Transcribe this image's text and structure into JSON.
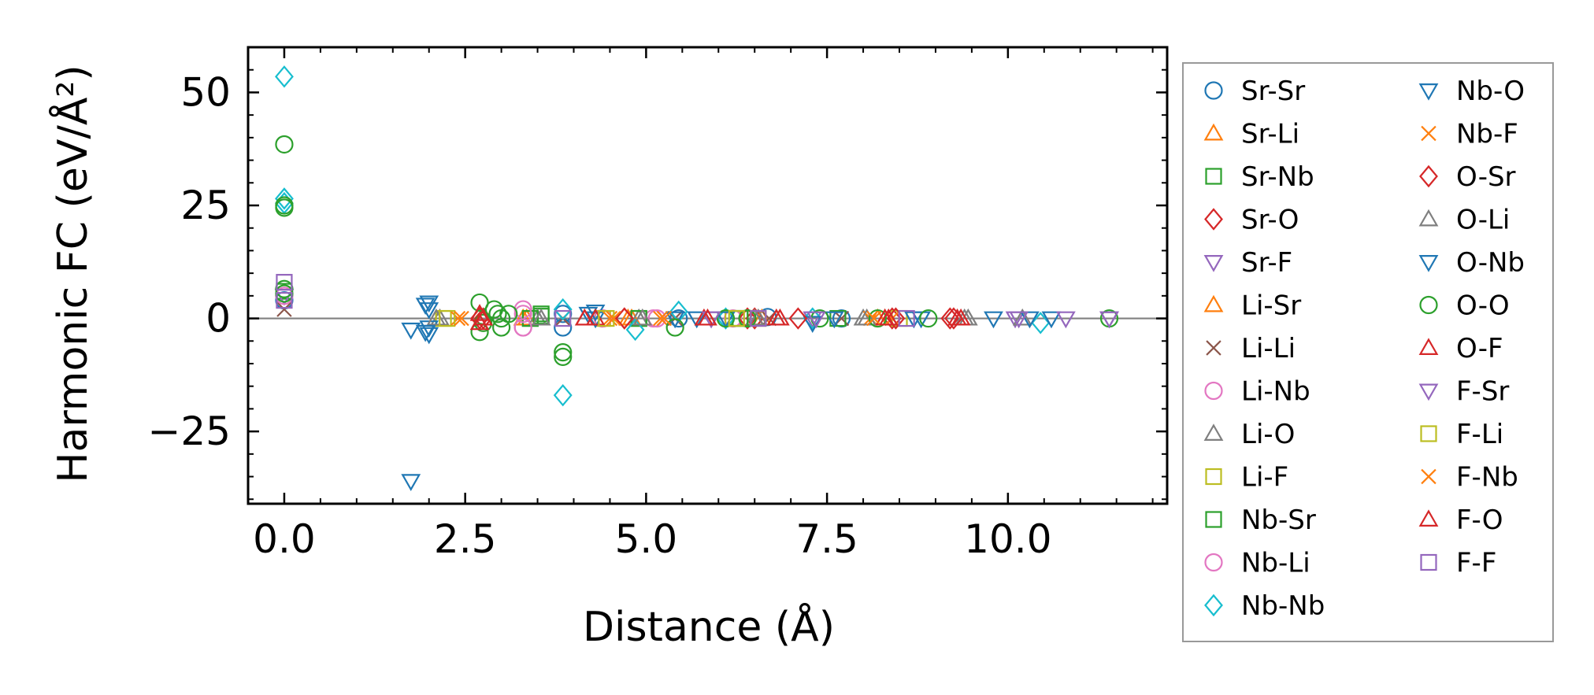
{
  "chart_data": {
    "type": "scatter",
    "title": "",
    "xlabel": "Distance (Å)",
    "ylabel": "Harmonic FC (eV/Å²)",
    "xlim": [
      -0.5,
      12.2
    ],
    "ylim": [
      -41,
      60
    ],
    "xticks": [
      0.0,
      2.5,
      5.0,
      7.5,
      10.0
    ],
    "xtick_labels": [
      "0.0",
      "2.5",
      "5.0",
      "7.5",
      "10.0"
    ],
    "yticks": [
      -25,
      0,
      25,
      50
    ],
    "ytick_labels": [
      "−25",
      "0",
      "25",
      "50"
    ],
    "x_minor_step": 0.5,
    "y_minor_step": 5,
    "grid": false,
    "reference_line_y": 0,
    "legend_position": "outside-right",
    "series": [
      {
        "name": "Sr-Sr",
        "marker": "circle",
        "color": "#1f77b4",
        "points": [
          [
            0,
            4
          ],
          [
            3.85,
            -2
          ],
          [
            3.85,
            1
          ],
          [
            5.45,
            0
          ],
          [
            6.68,
            0.3
          ],
          [
            7.7,
            0
          ]
        ]
      },
      {
        "name": "Sr-Li",
        "marker": "triangle-up",
        "color": "#ff7f0e",
        "points": [
          [
            3.35,
            0
          ],
          [
            4.75,
            0
          ],
          [
            6.5,
            0
          ],
          [
            8.3,
            0
          ]
        ]
      },
      {
        "name": "Sr-Nb",
        "marker": "square",
        "color": "#2ca02c",
        "points": [
          [
            0,
            6
          ],
          [
            3.4,
            0
          ],
          [
            3.55,
            0.5
          ],
          [
            4.9,
            0
          ],
          [
            6.3,
            0
          ]
        ]
      },
      {
        "name": "Sr-O",
        "marker": "diamond",
        "color": "#d62728",
        "points": [
          [
            2.7,
            0
          ],
          [
            4.7,
            0
          ],
          [
            6.5,
            0
          ],
          [
            8.4,
            0
          ],
          [
            9.2,
            0
          ]
        ]
      },
      {
        "name": "Sr-F",
        "marker": "triangle-down",
        "color": "#9467bd",
        "points": [
          [
            0,
            5
          ],
          [
            5.9,
            0
          ],
          [
            7.3,
            0
          ],
          [
            10.1,
            0
          ],
          [
            11.4,
            0
          ]
        ]
      },
      {
        "name": "Li-Sr",
        "marker": "triangle-up",
        "color": "#ff7f0e",
        "points": [
          [
            3.3,
            0
          ],
          [
            4.8,
            0
          ],
          [
            6.6,
            0
          ],
          [
            8.2,
            0
          ]
        ]
      },
      {
        "name": "Li-Li",
        "marker": "x",
        "color": "#8c564b",
        "points": [
          [
            0,
            2
          ],
          [
            3.85,
            0
          ],
          [
            5.4,
            0
          ],
          [
            6.7,
            0
          ],
          [
            7.7,
            0
          ]
        ]
      },
      {
        "name": "Li-Nb",
        "marker": "circle",
        "color": "#e377c2",
        "points": [
          [
            0,
            5
          ],
          [
            3.3,
            2
          ],
          [
            3.3,
            -2
          ],
          [
            4.4,
            0
          ],
          [
            5.1,
            0
          ],
          [
            6.2,
            0
          ]
        ]
      },
      {
        "name": "Li-O",
        "marker": "triangle-up",
        "color": "#7f7f7f",
        "points": [
          [
            2.15,
            0
          ],
          [
            3.5,
            0
          ],
          [
            4.9,
            0
          ],
          [
            6.5,
            0
          ],
          [
            8.0,
            0
          ],
          [
            9.4,
            0
          ]
        ]
      },
      {
        "name": "Li-F",
        "marker": "square",
        "color": "#bcbd22",
        "points": [
          [
            2.2,
            0
          ],
          [
            4.4,
            0
          ],
          [
            6.2,
            0
          ],
          [
            8.5,
            0
          ]
        ]
      },
      {
        "name": "Nb-Sr",
        "marker": "square",
        "color": "#2ca02c",
        "points": [
          [
            3.4,
            0
          ],
          [
            3.55,
            1
          ],
          [
            4.9,
            0
          ],
          [
            6.3,
            0
          ],
          [
            7.65,
            0
          ]
        ]
      },
      {
        "name": "Nb-Li",
        "marker": "circle",
        "color": "#e377c2",
        "points": [
          [
            3.3,
            1
          ],
          [
            3.3,
            -2
          ],
          [
            4.4,
            0
          ],
          [
            5.15,
            0
          ]
        ]
      },
      {
        "name": "Nb-Nb",
        "marker": "diamond",
        "color": "#17becf",
        "points": [
          [
            0,
            53.5
          ],
          [
            0,
            26.5
          ],
          [
            0,
            25.5
          ],
          [
            3.85,
            -17
          ],
          [
            3.85,
            2
          ],
          [
            4.85,
            -2.5
          ],
          [
            5.45,
            1.5
          ],
          [
            6.1,
            0
          ],
          [
            7.3,
            0
          ],
          [
            10.45,
            -1
          ]
        ]
      },
      {
        "name": "Nb-O",
        "marker": "triangle-down",
        "color": "#1f77b4",
        "points": [
          [
            1.75,
            -36
          ],
          [
            1.75,
            -2.5
          ],
          [
            2.0,
            3.5
          ],
          [
            2.0,
            2
          ],
          [
            2.0,
            -3.5
          ],
          [
            2.0,
            -2
          ],
          [
            4.3,
            1.5
          ],
          [
            4.3,
            0
          ],
          [
            5.4,
            0
          ],
          [
            6.1,
            0
          ],
          [
            7.3,
            -1
          ],
          [
            8.7,
            0
          ],
          [
            9.8,
            0
          ],
          [
            10.6,
            0
          ]
        ]
      },
      {
        "name": "Nb-F",
        "marker": "x",
        "color": "#ff7f0e",
        "points": [
          [
            2.4,
            0
          ],
          [
            4.5,
            0
          ],
          [
            5.2,
            0
          ],
          [
            8.1,
            0
          ],
          [
            8.4,
            0
          ]
        ]
      },
      {
        "name": "O-Sr",
        "marker": "diamond",
        "color": "#d62728",
        "points": [
          [
            2.75,
            0
          ],
          [
            4.7,
            0
          ],
          [
            6.4,
            0
          ],
          [
            7.1,
            0
          ],
          [
            8.45,
            0
          ],
          [
            9.25,
            0
          ]
        ]
      },
      {
        "name": "O-Li",
        "marker": "triangle-up",
        "color": "#7f7f7f",
        "points": [
          [
            2.1,
            0
          ],
          [
            3.55,
            0
          ],
          [
            4.95,
            0
          ],
          [
            6.55,
            0
          ],
          [
            8.05,
            0
          ],
          [
            9.45,
            0
          ],
          [
            10.2,
            0
          ]
        ]
      },
      {
        "name": "O-Nb",
        "marker": "triangle-down",
        "color": "#1f77b4",
        "points": [
          [
            1.95,
            3
          ],
          [
            1.95,
            -3
          ],
          [
            4.2,
            1
          ],
          [
            5.7,
            0
          ],
          [
            7.6,
            0
          ],
          [
            8.8,
            0
          ],
          [
            10.3,
            0
          ]
        ]
      },
      {
        "name": "O-O",
        "marker": "circle",
        "color": "#2ca02c",
        "points": [
          [
            0,
            38.5
          ],
          [
            0,
            25
          ],
          [
            0,
            24.5
          ],
          [
            0,
            6.5
          ],
          [
            0,
            5.5
          ],
          [
            2.7,
            3.5
          ],
          [
            2.7,
            -3
          ],
          [
            2.75,
            -1
          ],
          [
            2.9,
            2
          ],
          [
            2.95,
            1
          ],
          [
            3.0,
            0
          ],
          [
            3.0,
            -2
          ],
          [
            3.1,
            1
          ],
          [
            3.85,
            -7.5
          ],
          [
            3.85,
            -8.5
          ],
          [
            5.4,
            -2
          ],
          [
            6.1,
            0
          ],
          [
            6.4,
            0
          ],
          [
            7.4,
            0
          ],
          [
            8.2,
            0
          ],
          [
            8.9,
            0
          ],
          [
            11.4,
            0
          ]
        ]
      },
      {
        "name": "O-F",
        "marker": "triangle-up",
        "color": "#d62728",
        "points": [
          [
            2.7,
            1
          ],
          [
            2.7,
            -1
          ],
          [
            4.15,
            0
          ],
          [
            4.3,
            0
          ],
          [
            5.8,
            0
          ],
          [
            6.8,
            0
          ],
          [
            8.3,
            0
          ],
          [
            9.3,
            0
          ]
        ]
      },
      {
        "name": "F-Sr",
        "marker": "triangle-down",
        "color": "#9467bd",
        "points": [
          [
            5.9,
            0
          ],
          [
            7.35,
            0
          ],
          [
            10.15,
            0
          ],
          [
            10.8,
            0
          ],
          [
            11.4,
            0
          ]
        ]
      },
      {
        "name": "F-Li",
        "marker": "square",
        "color": "#bcbd22",
        "points": [
          [
            2.25,
            0
          ],
          [
            4.45,
            0
          ],
          [
            6.25,
            0
          ],
          [
            6.55,
            0
          ]
        ]
      },
      {
        "name": "F-Nb",
        "marker": "x",
        "color": "#ff7f0e",
        "points": [
          [
            2.45,
            0
          ],
          [
            4.55,
            0
          ],
          [
            5.25,
            0
          ],
          [
            8.15,
            0
          ]
        ]
      },
      {
        "name": "F-O",
        "marker": "triangle-up",
        "color": "#d62728",
        "points": [
          [
            2.75,
            0
          ],
          [
            4.15,
            0
          ],
          [
            5.85,
            0
          ],
          [
            6.85,
            0
          ],
          [
            8.35,
            0
          ],
          [
            9.35,
            0
          ]
        ]
      },
      {
        "name": "F-F",
        "marker": "square",
        "color": "#9467bd",
        "points": [
          [
            0,
            8
          ],
          [
            0,
            4
          ],
          [
            3.85,
            0
          ],
          [
            6.55,
            0
          ],
          [
            8.6,
            0
          ]
        ]
      }
    ]
  }
}
